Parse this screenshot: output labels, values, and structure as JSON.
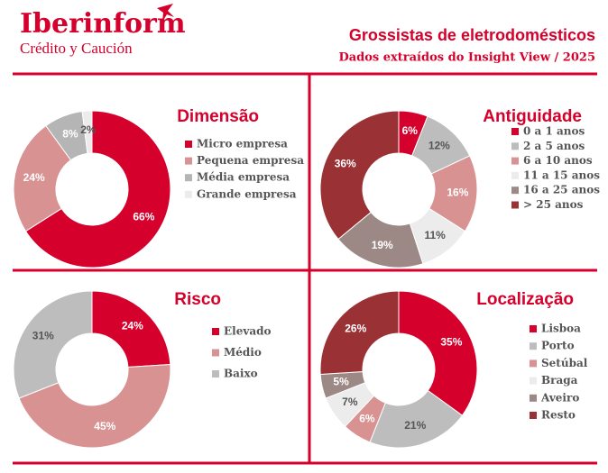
{
  "header": {
    "logo": "Iberinform",
    "tagline": "Crédito y Caución",
    "title": "Grossistas de eletrodomésticos",
    "subtitle": "Dados extraídos do Insight View / 2025"
  },
  "chart_data": [
    {
      "type": "donut",
      "title": "Dimensão",
      "categories": [
        "Micro empresa",
        "Pequena empresa",
        "Média empresa",
        "Grande empresa"
      ],
      "values": [
        66,
        24,
        8,
        2
      ],
      "value_labels": [
        "66%",
        "24%",
        "8%",
        "2%"
      ],
      "colors": [
        "#d5002b",
        "#d99292",
        "#b5b5b5",
        "#ececec"
      ]
    },
    {
      "type": "donut",
      "title": "Antiguidade",
      "categories": [
        "0 a 1 anos",
        "2 a 5 anos",
        "6 a 10 anos",
        "11 a 15 anos",
        "16 a 25 anos",
        "> 25 anos"
      ],
      "values": [
        6,
        12,
        16,
        11,
        19,
        36
      ],
      "value_labels": [
        "6%",
        "12%",
        "16%",
        "11%",
        "19%",
        "36%"
      ],
      "colors": [
        "#d5002b",
        "#bdbdbd",
        "#d99292",
        "#ececec",
        "#9c8985",
        "#9a3135"
      ]
    },
    {
      "type": "donut",
      "title": "Risco",
      "categories": [
        "Elevado",
        "Médio",
        "Baixo"
      ],
      "values": [
        24,
        45,
        31
      ],
      "value_labels": [
        "24%",
        "45%",
        "31%"
      ],
      "colors": [
        "#d5002b",
        "#d99292",
        "#bdbdbd"
      ]
    },
    {
      "type": "donut",
      "title": "Localização",
      "categories": [
        "Lisboa",
        "Porto",
        "Setúbal",
        "Braga",
        "Aveiro",
        "Resto"
      ],
      "values": [
        35,
        21,
        6,
        7,
        5,
        26
      ],
      "value_labels": [
        "35%",
        "21%",
        "6%",
        "7%",
        "5%",
        "26%"
      ],
      "colors": [
        "#d5002b",
        "#bdbdbd",
        "#d99292",
        "#ececec",
        "#9c8985",
        "#9a3135"
      ]
    }
  ]
}
